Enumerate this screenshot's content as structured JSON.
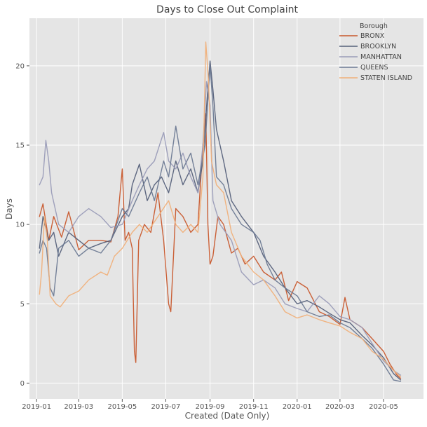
{
  "chart_data": {
    "type": "line",
    "title": "Days to Close Out Complaint",
    "xlabel": "Created (Date Only)",
    "ylabel": "Days",
    "xlim": [
      "2018-12-22",
      "2020-06-26"
    ],
    "ylim": [
      -1,
      23
    ],
    "xticks": [
      "2019-01",
      "2019-03",
      "2019-05",
      "2019-07",
      "2019-09",
      "2019-11",
      "2020-01",
      "2020-03",
      "2020-05"
    ],
    "yticks": [
      0,
      5,
      10,
      15,
      20
    ],
    "grid": true,
    "legend": {
      "title": "Borough",
      "placement": "top-right"
    },
    "background": "#e5e5e5",
    "series": [
      {
        "name": "BRONX",
        "color": "#c8582d",
        "points": [
          [
            "2019-01-05",
            10.5
          ],
          [
            "2019-01-10",
            11.3
          ],
          [
            "2019-01-18",
            9.0
          ],
          [
            "2019-01-25",
            10.5
          ],
          [
            "2019-02-05",
            9.2
          ],
          [
            "2019-02-15",
            10.8
          ],
          [
            "2019-03-01",
            8.4
          ],
          [
            "2019-03-15",
            9.0
          ],
          [
            "2019-04-01",
            9.0
          ],
          [
            "2019-04-15",
            8.9
          ],
          [
            "2019-04-25",
            10.5
          ],
          [
            "2019-05-01",
            13.5
          ],
          [
            "2019-05-05",
            9.0
          ],
          [
            "2019-05-10",
            9.5
          ],
          [
            "2019-05-15",
            8.5
          ],
          [
            "2019-05-18",
            2.0
          ],
          [
            "2019-05-20",
            1.3
          ],
          [
            "2019-05-24",
            9.0
          ],
          [
            "2019-06-01",
            10.0
          ],
          [
            "2019-06-10",
            9.5
          ],
          [
            "2019-06-20",
            12.0
          ],
          [
            "2019-06-28",
            9.0
          ],
          [
            "2019-07-05",
            5.0
          ],
          [
            "2019-07-08",
            4.5
          ],
          [
            "2019-07-15",
            11.0
          ],
          [
            "2019-07-25",
            10.5
          ],
          [
            "2019-08-05",
            9.5
          ],
          [
            "2019-08-15",
            10.0
          ],
          [
            "2019-08-22",
            15.0
          ],
          [
            "2019-08-26",
            17.0
          ],
          [
            "2019-08-29",
            10.0
          ],
          [
            "2019-09-01",
            7.5
          ],
          [
            "2019-09-05",
            8.0
          ],
          [
            "2019-09-12",
            10.5
          ],
          [
            "2019-09-20",
            10.0
          ],
          [
            "2019-10-01",
            8.2
          ],
          [
            "2019-10-10",
            8.5
          ],
          [
            "2019-10-20",
            7.5
          ],
          [
            "2019-11-01",
            8.0
          ],
          [
            "2019-11-15",
            7.0
          ],
          [
            "2019-12-01",
            6.5
          ],
          [
            "2019-12-10",
            7.0
          ],
          [
            "2019-12-20",
            5.2
          ],
          [
            "2020-01-01",
            6.4
          ],
          [
            "2020-01-15",
            6.0
          ],
          [
            "2020-02-01",
            4.5
          ],
          [
            "2020-02-15",
            4.2
          ],
          [
            "2020-03-01",
            3.7
          ],
          [
            "2020-03-08",
            5.4
          ],
          [
            "2020-03-15",
            4.0
          ],
          [
            "2020-04-01",
            3.5
          ],
          [
            "2020-04-15",
            2.8
          ],
          [
            "2020-05-01",
            2.0
          ],
          [
            "2020-05-10",
            1.2
          ],
          [
            "2020-05-20",
            0.5
          ],
          [
            "2020-05-25",
            0.3
          ]
        ]
      },
      {
        "name": "BROOKLYN",
        "color": "#55607a",
        "points": [
          [
            "2019-01-05",
            8.5
          ],
          [
            "2019-01-10",
            10.5
          ],
          [
            "2019-01-18",
            9.0
          ],
          [
            "2019-01-25",
            9.5
          ],
          [
            "2019-02-01",
            8.0
          ],
          [
            "2019-02-15",
            9.5
          ],
          [
            "2019-03-01",
            9.0
          ],
          [
            "2019-03-15",
            8.5
          ],
          [
            "2019-04-01",
            8.8
          ],
          [
            "2019-04-15",
            9.0
          ],
          [
            "2019-05-01",
            10.5
          ],
          [
            "2019-05-10",
            11.0
          ],
          [
            "2019-05-15",
            12.5
          ],
          [
            "2019-05-25",
            13.8
          ],
          [
            "2019-06-05",
            11.5
          ],
          [
            "2019-06-15",
            12.5
          ],
          [
            "2019-06-25",
            13.0
          ],
          [
            "2019-07-05",
            12.0
          ],
          [
            "2019-07-15",
            14.0
          ],
          [
            "2019-07-25",
            12.5
          ],
          [
            "2019-08-05",
            13.5
          ],
          [
            "2019-08-15",
            12.0
          ],
          [
            "2019-08-22",
            14.0
          ],
          [
            "2019-08-28",
            18.0
          ],
          [
            "2019-09-01",
            20.3
          ],
          [
            "2019-09-05",
            18.5
          ],
          [
            "2019-09-10",
            16.0
          ],
          [
            "2019-09-20",
            14.0
          ],
          [
            "2019-10-01",
            11.5
          ],
          [
            "2019-10-15",
            10.5
          ],
          [
            "2019-11-01",
            9.5
          ],
          [
            "2019-11-15",
            8.0
          ],
          [
            "2019-12-01",
            7.0
          ],
          [
            "2019-12-15",
            6.0
          ],
          [
            "2020-01-01",
            5.0
          ],
          [
            "2020-01-15",
            5.2
          ],
          [
            "2020-02-01",
            4.8
          ],
          [
            "2020-02-15",
            4.4
          ],
          [
            "2020-03-01",
            4.0
          ],
          [
            "2020-03-15",
            3.8
          ],
          [
            "2020-04-01",
            3.0
          ],
          [
            "2020-04-15",
            2.4
          ],
          [
            "2020-05-01",
            1.6
          ],
          [
            "2020-05-15",
            0.6
          ],
          [
            "2020-05-25",
            0.2
          ]
        ]
      },
      {
        "name": "MANHATTAN",
        "color": "#9a9cb8",
        "points": [
          [
            "2019-01-05",
            12.5
          ],
          [
            "2019-01-10",
            13.0
          ],
          [
            "2019-01-14",
            15.3
          ],
          [
            "2019-01-18",
            14.0
          ],
          [
            "2019-01-22",
            12.0
          ],
          [
            "2019-02-01",
            10.0
          ],
          [
            "2019-02-15",
            9.5
          ],
          [
            "2019-03-01",
            10.5
          ],
          [
            "2019-03-15",
            11.0
          ],
          [
            "2019-04-01",
            10.5
          ],
          [
            "2019-04-15",
            9.8
          ],
          [
            "2019-05-01",
            10.0
          ],
          [
            "2019-05-15",
            11.5
          ],
          [
            "2019-05-25",
            12.5
          ],
          [
            "2019-06-05",
            13.5
          ],
          [
            "2019-06-15",
            14.0
          ],
          [
            "2019-06-28",
            15.8
          ],
          [
            "2019-07-05",
            14.0
          ],
          [
            "2019-07-15",
            13.5
          ],
          [
            "2019-07-25",
            14.5
          ],
          [
            "2019-08-05",
            13.0
          ],
          [
            "2019-08-15",
            12.0
          ],
          [
            "2019-08-22",
            15.0
          ],
          [
            "2019-08-27",
            19.0
          ],
          [
            "2019-09-01",
            17.5
          ],
          [
            "2019-09-05",
            11.5
          ],
          [
            "2019-09-15",
            10.0
          ],
          [
            "2019-10-01",
            9.0
          ],
          [
            "2019-10-15",
            7.0
          ],
          [
            "2019-11-01",
            6.2
          ],
          [
            "2019-11-15",
            6.5
          ],
          [
            "2019-12-01",
            6.0
          ],
          [
            "2019-12-15",
            5.0
          ],
          [
            "2020-01-01",
            4.7
          ],
          [
            "2020-01-15",
            4.5
          ],
          [
            "2020-02-01",
            5.5
          ],
          [
            "2020-02-15",
            5.0
          ],
          [
            "2020-03-01",
            4.2
          ],
          [
            "2020-03-15",
            4.0
          ],
          [
            "2020-04-01",
            3.5
          ],
          [
            "2020-04-15",
            2.5
          ],
          [
            "2020-05-01",
            1.4
          ],
          [
            "2020-05-15",
            0.8
          ],
          [
            "2020-05-25",
            0.5
          ]
        ]
      },
      {
        "name": "QUEENS",
        "color": "#6d7a94",
        "points": [
          [
            "2019-01-05",
            8.2
          ],
          [
            "2019-01-10",
            9.0
          ],
          [
            "2019-01-15",
            8.5
          ],
          [
            "2019-01-20",
            6.0
          ],
          [
            "2019-01-25",
            5.5
          ],
          [
            "2019-02-01",
            8.5
          ],
          [
            "2019-02-15",
            9.0
          ],
          [
            "2019-03-01",
            8.0
          ],
          [
            "2019-03-15",
            8.5
          ],
          [
            "2019-04-01",
            8.2
          ],
          [
            "2019-04-15",
            9.0
          ],
          [
            "2019-05-01",
            11.0
          ],
          [
            "2019-05-10",
            10.5
          ],
          [
            "2019-05-25",
            12.0
          ],
          [
            "2019-06-05",
            13.0
          ],
          [
            "2019-06-15",
            11.5
          ],
          [
            "2019-06-28",
            14.0
          ],
          [
            "2019-07-05",
            13.0
          ],
          [
            "2019-07-15",
            16.2
          ],
          [
            "2019-07-25",
            13.5
          ],
          [
            "2019-08-05",
            14.5
          ],
          [
            "2019-08-15",
            12.5
          ],
          [
            "2019-08-25",
            15.0
          ],
          [
            "2019-09-01",
            20.0
          ],
          [
            "2019-09-05",
            17.5
          ],
          [
            "2019-09-10",
            13.0
          ],
          [
            "2019-09-20",
            12.5
          ],
          [
            "2019-10-01",
            11.0
          ],
          [
            "2019-10-15",
            10.0
          ],
          [
            "2019-11-01",
            9.5
          ],
          [
            "2019-11-10",
            9.0
          ],
          [
            "2019-11-20",
            7.5
          ],
          [
            "2019-12-01",
            6.5
          ],
          [
            "2019-12-15",
            6.0
          ],
          [
            "2020-01-01",
            5.5
          ],
          [
            "2020-01-15",
            4.5
          ],
          [
            "2020-02-01",
            4.2
          ],
          [
            "2020-02-15",
            4.3
          ],
          [
            "2020-03-01",
            3.8
          ],
          [
            "2020-03-15",
            3.5
          ],
          [
            "2020-04-01",
            2.8
          ],
          [
            "2020-04-15",
            2.2
          ],
          [
            "2020-05-01",
            1.2
          ],
          [
            "2020-05-15",
            0.2
          ],
          [
            "2020-05-25",
            0.1
          ]
        ]
      },
      {
        "name": "STATEN ISLAND",
        "color": "#f0b07a",
        "points": [
          [
            "2019-01-05",
            5.6
          ],
          [
            "2019-01-08",
            7.0
          ],
          [
            "2019-01-12",
            10.5
          ],
          [
            "2019-01-16",
            9.0
          ],
          [
            "2019-01-20",
            5.5
          ],
          [
            "2019-01-28",
            5.0
          ],
          [
            "2019-02-03",
            4.8
          ],
          [
            "2019-02-15",
            5.5
          ],
          [
            "2019-03-01",
            5.8
          ],
          [
            "2019-03-15",
            6.5
          ],
          [
            "2019-04-01",
            7.0
          ],
          [
            "2019-04-10",
            6.8
          ],
          [
            "2019-04-20",
            8.0
          ],
          [
            "2019-05-01",
            8.5
          ],
          [
            "2019-05-15",
            9.5
          ],
          [
            "2019-05-25",
            10.0
          ],
          [
            "2019-06-05",
            9.5
          ],
          [
            "2019-06-20",
            10.5
          ],
          [
            "2019-07-05",
            11.5
          ],
          [
            "2019-07-15",
            10.0
          ],
          [
            "2019-07-25",
            9.5
          ],
          [
            "2019-08-05",
            10.0
          ],
          [
            "2019-08-15",
            9.5
          ],
          [
            "2019-08-22",
            13.0
          ],
          [
            "2019-08-26",
            21.5
          ],
          [
            "2019-08-30",
            19.0
          ],
          [
            "2019-09-03",
            14.0
          ],
          [
            "2019-09-10",
            12.5
          ],
          [
            "2019-09-20",
            12.0
          ],
          [
            "2019-10-01",
            9.5
          ],
          [
            "2019-10-15",
            8.0
          ],
          [
            "2019-11-01",
            7.0
          ],
          [
            "2019-11-15",
            6.5
          ],
          [
            "2019-12-01",
            5.5
          ],
          [
            "2019-12-15",
            4.5
          ],
          [
            "2020-01-01",
            4.1
          ],
          [
            "2020-01-15",
            4.3
          ],
          [
            "2020-02-01",
            4.0
          ],
          [
            "2020-02-15",
            3.8
          ],
          [
            "2020-03-01",
            3.6
          ],
          [
            "2020-03-15",
            3.2
          ],
          [
            "2020-04-01",
            2.8
          ],
          [
            "2020-04-15",
            2.0
          ],
          [
            "2020-05-01",
            1.5
          ],
          [
            "2020-05-15",
            0.8
          ],
          [
            "2020-05-25",
            0.4
          ]
        ]
      }
    ]
  }
}
